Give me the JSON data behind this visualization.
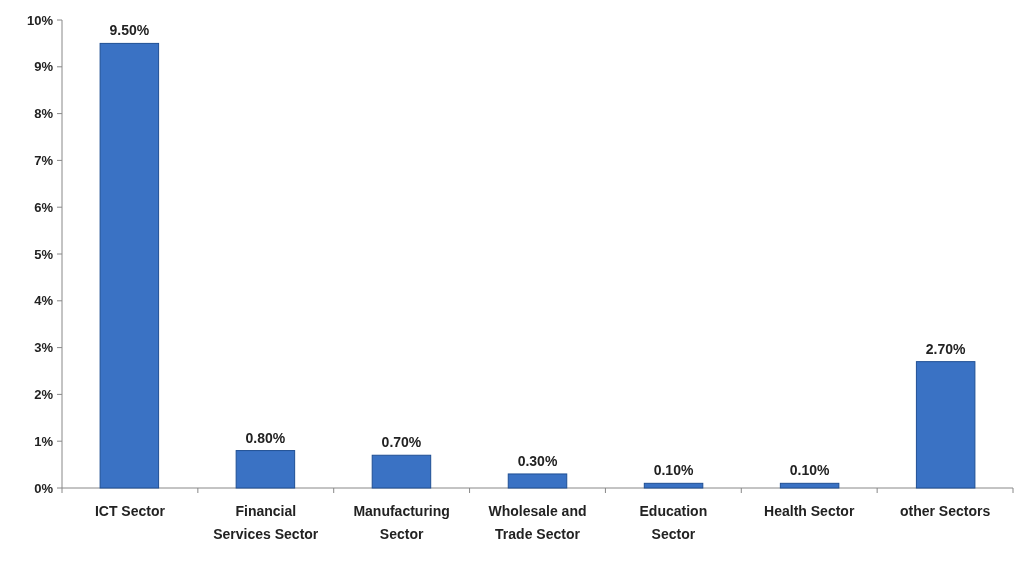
{
  "chart_data": {
    "type": "bar",
    "categories": [
      "ICT Sector",
      "Financial Services Sector",
      "Manufacturing Sector",
      "Wholesale and Trade Sector",
      "Education Sector",
      "Health Sector",
      "other Sectors"
    ],
    "values": [
      9.5,
      0.8,
      0.7,
      0.3,
      0.1,
      0.1,
      2.7
    ],
    "value_labels": [
      "9.50%",
      "0.80%",
      "0.70%",
      "0.30%",
      "0.10%",
      "0.10%",
      "2.70%"
    ],
    "color": "#3a72c4",
    "ylim": [
      0,
      10
    ],
    "yticks": [
      {
        "value": 0,
        "label": "0%"
      },
      {
        "value": 1,
        "label": "1%"
      },
      {
        "value": 2,
        "label": "2%"
      },
      {
        "value": 3,
        "label": "3%"
      },
      {
        "value": 4,
        "label": "4%"
      },
      {
        "value": 5,
        "label": "5%"
      },
      {
        "value": 6,
        "label": "6%"
      },
      {
        "value": 7,
        "label": "7%"
      },
      {
        "value": 8,
        "label": "8%"
      },
      {
        "value": 9,
        "label": "9%"
      },
      {
        "value": 10,
        "label": "10%"
      }
    ]
  }
}
